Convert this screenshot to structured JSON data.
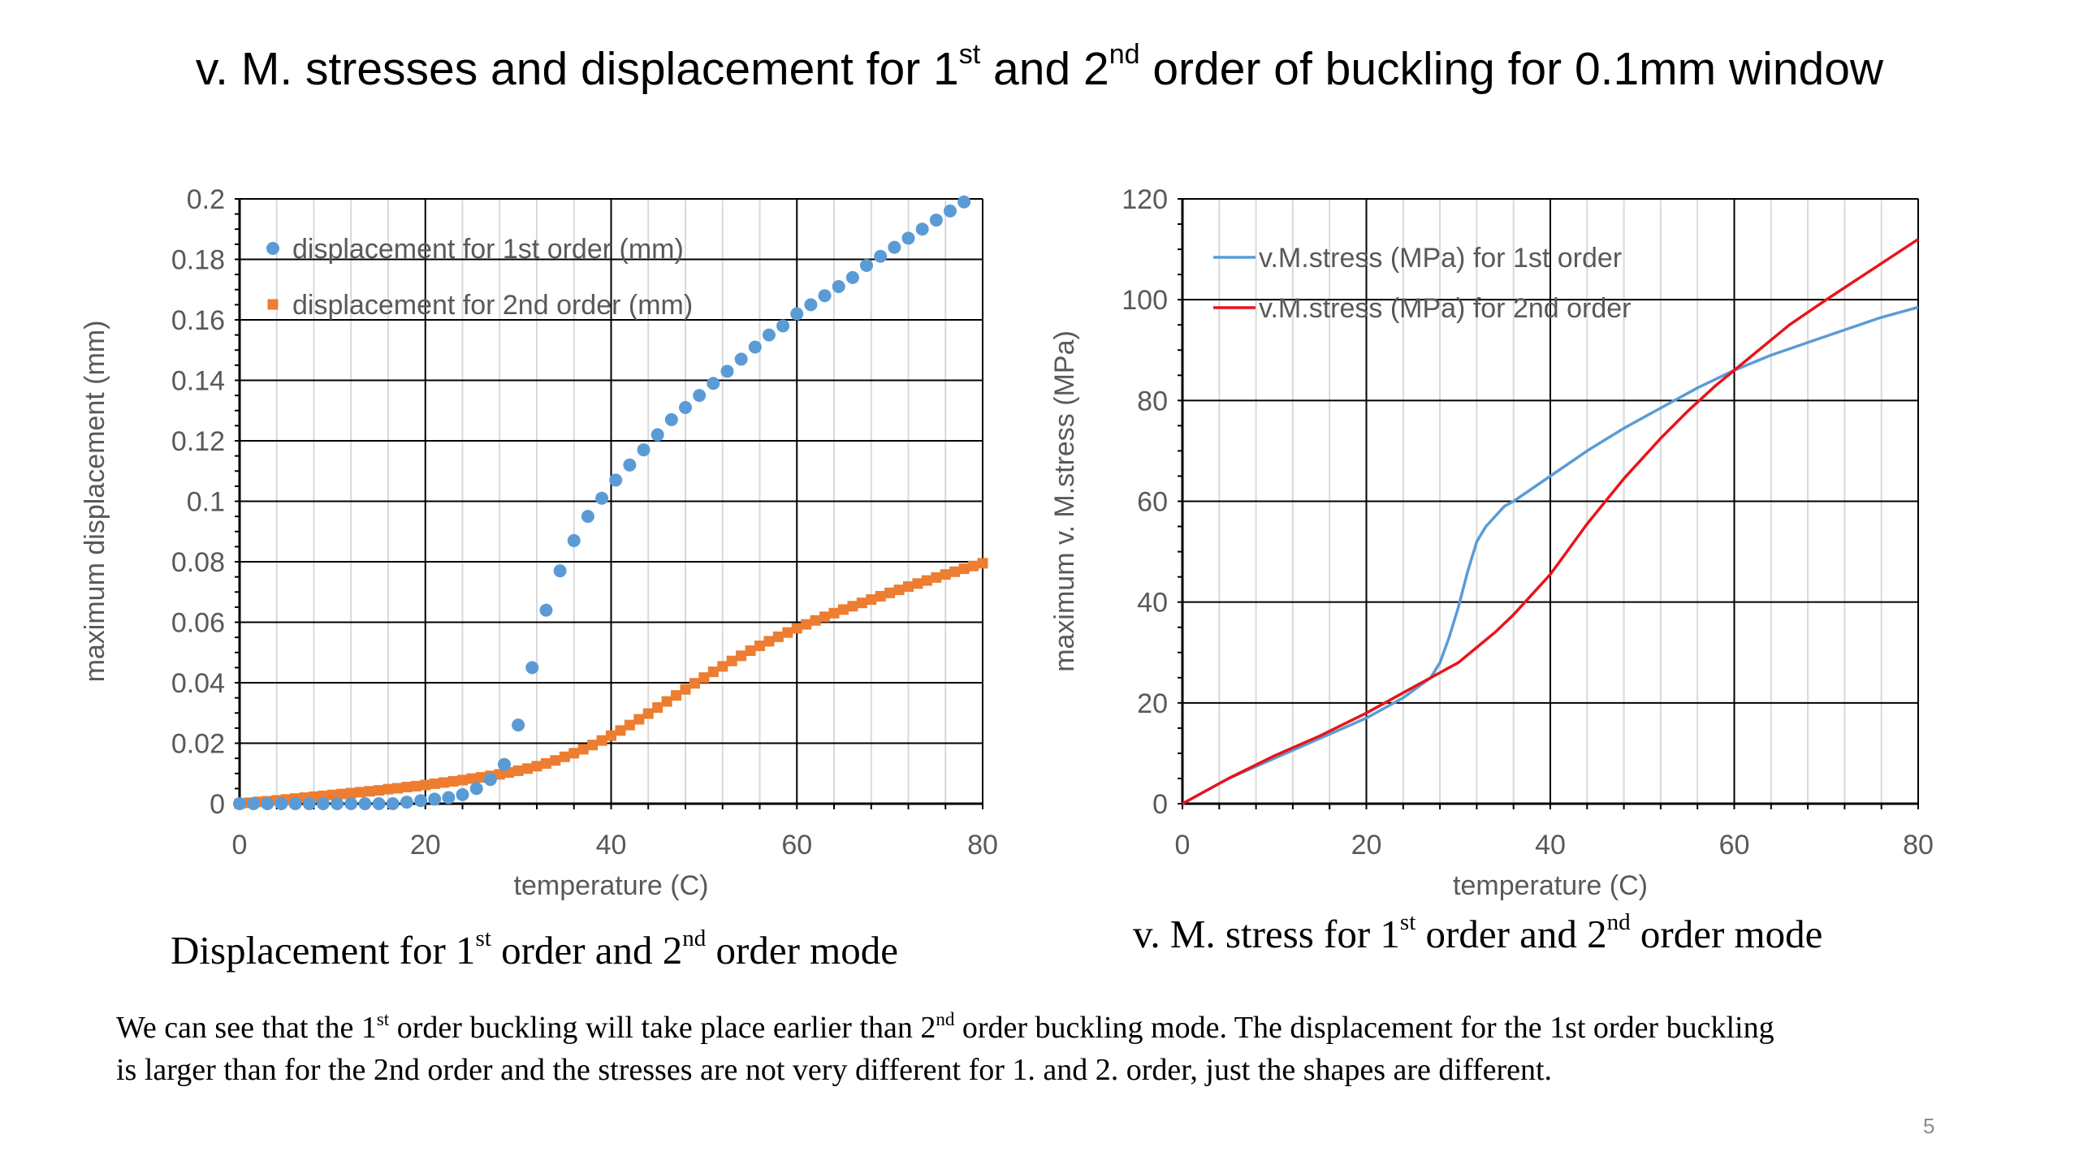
{
  "title": {
    "part1": "v. M. stresses and displacement for 1",
    "sup1": "st",
    "part2": " and 2",
    "sup2": "nd",
    "part3": " order of buckling for 0.1mm window"
  },
  "captions": {
    "left": {
      "part1": "Displacement for 1",
      "sup1": "st",
      "part2": " order and 2",
      "sup2": "nd",
      "part3": " order mode"
    },
    "right": {
      "part1": "v. M. stress for 1",
      "sup1": "st",
      "part2": " order and 2",
      "sup2": "nd",
      "part3": " order mode"
    }
  },
  "body": {
    "line1_a": "We can see that the 1",
    "line1_sup1": "st",
    "line1_b": " order buckling will take place earlier than 2",
    "line1_sup2": "nd",
    "line1_c": " order buckling mode. The displacement for the 1st order buckling",
    "line2": "is larger than for  the  2nd order and the stresses are not very different for 1. and 2. order, just the shapes are different."
  },
  "page_number": "5",
  "colors": {
    "blue_series": "#5B9BD5",
    "orange_series": "#ED7D31",
    "line_blue": "#5B9BD5",
    "line_red": "#E8141B",
    "gridline": "#000000",
    "minor_gridline": "#D9D9D9",
    "axis_text": "#595959"
  },
  "chart_data": [
    {
      "type": "scatter",
      "xlabel": "temperature (C)",
      "ylabel": "maximum displacement (mm)",
      "xlim": [
        0,
        80
      ],
      "ylim": [
        0,
        0.2
      ],
      "xticks": [
        0,
        20,
        40,
        60,
        80
      ],
      "yticks": [
        0,
        0.02,
        0.04,
        0.06,
        0.08,
        0.1,
        0.12,
        0.14,
        0.16,
        0.18,
        0.2
      ],
      "ytick_labels": [
        "0",
        "0.02",
        "0.04",
        "0.06",
        "0.08",
        "0.1",
        "0.12",
        "0.14",
        "0.16",
        "0.18",
        "0.2"
      ],
      "grid": true,
      "legend_position": "top-left",
      "series": [
        {
          "name": "displacement for 1st order (mm)",
          "marker": "circle",
          "color": "#5B9BD5",
          "x": [
            0,
            1.5,
            3,
            4.5,
            6,
            7.5,
            9,
            10.5,
            12,
            13.5,
            15,
            16.5,
            18,
            19.5,
            21,
            22.5,
            24,
            25.5,
            27,
            28.5,
            30,
            31.5,
            33,
            34.5,
            36,
            37.5,
            39,
            40.5,
            42,
            43.5,
            45,
            46.5,
            48,
            49.5,
            51,
            52.5,
            54,
            55.5,
            57,
            58.5,
            60,
            61.5,
            63,
            64.5,
            66,
            67.5,
            69,
            70.5,
            72,
            73.5,
            75,
            76.5,
            78
          ],
          "y": [
            0,
            0,
            0,
            0,
            0,
            0,
            0,
            0,
            0,
            0,
            0,
            0,
            0.0005,
            0.001,
            0.0015,
            0.002,
            0.003,
            0.005,
            0.008,
            0.013,
            0.026,
            0.045,
            0.064,
            0.077,
            0.087,
            0.095,
            0.101,
            0.107,
            0.112,
            0.117,
            0.122,
            0.127,
            0.131,
            0.135,
            0.139,
            0.143,
            0.147,
            0.151,
            0.155,
            0.158,
            0.162,
            0.165,
            0.168,
            0.171,
            0.174,
            0.178,
            0.181,
            0.184,
            0.187,
            0.19,
            0.193,
            0.196,
            0.199
          ]
        },
        {
          "name": "displacement for 2nd order (mm)",
          "marker": "square",
          "color": "#ED7D31",
          "x": [
            0,
            1,
            2,
            3,
            4,
            5,
            6,
            7,
            8,
            9,
            10,
            11,
            12,
            13,
            14,
            15,
            16,
            17,
            18,
            19,
            20,
            21,
            22,
            23,
            24,
            25,
            26,
            27,
            28,
            29,
            30,
            31,
            32,
            33,
            34,
            35,
            36,
            37,
            38,
            39,
            40,
            41,
            42,
            43,
            44,
            45,
            46,
            47,
            48,
            49,
            50,
            51,
            52,
            53,
            54,
            55,
            56,
            57,
            58,
            59,
            60,
            61,
            62,
            63,
            64,
            65,
            66,
            67,
            68,
            69,
            70,
            71,
            72,
            73,
            74,
            75,
            76,
            77,
            78,
            79,
            80
          ],
          "y": [
            0,
            0.0003,
            0.0006,
            0.0008,
            0.0011,
            0.0014,
            0.0017,
            0.002,
            0.0023,
            0.0026,
            0.0029,
            0.0032,
            0.0035,
            0.0038,
            0.0041,
            0.0044,
            0.0048,
            0.0051,
            0.0055,
            0.0058,
            0.0062,
            0.0066,
            0.007,
            0.0074,
            0.0078,
            0.0083,
            0.0087,
            0.0092,
            0.0097,
            0.0103,
            0.0109,
            0.0116,
            0.0124,
            0.0133,
            0.0143,
            0.0155,
            0.0167,
            0.018,
            0.0194,
            0.0209,
            0.0225,
            0.0242,
            0.026,
            0.0279,
            0.0298,
            0.0318,
            0.0338,
            0.0358,
            0.0378,
            0.0398,
            0.0417,
            0.0436,
            0.0454,
            0.0472,
            0.0489,
            0.0506,
            0.0522,
            0.0537,
            0.0552,
            0.0566,
            0.058,
            0.0593,
            0.0606,
            0.0618,
            0.063,
            0.0642,
            0.0653,
            0.0664,
            0.0675,
            0.0686,
            0.0697,
            0.0707,
            0.0718,
            0.0728,
            0.0738,
            0.0748,
            0.0758,
            0.0767,
            0.0777,
            0.0786,
            0.0795
          ]
        }
      ]
    },
    {
      "type": "line",
      "xlabel": "temperature (C)",
      "ylabel": "maximum v. M.stress (MPa)",
      "xlim": [
        0,
        80
      ],
      "ylim": [
        0,
        120
      ],
      "xticks": [
        0,
        20,
        40,
        60,
        80
      ],
      "yticks": [
        0,
        20,
        40,
        60,
        80,
        100,
        120
      ],
      "grid": true,
      "legend_position": "top-left",
      "series": [
        {
          "name": "v.M.stress (MPa) for 1st order",
          "color": "#5B9BD5",
          "x": [
            0,
            5,
            10,
            15,
            20,
            24,
            27,
            28,
            29,
            30,
            31,
            32,
            33,
            34,
            35,
            36,
            38,
            40,
            44,
            48,
            52,
            56,
            60,
            64,
            68,
            72,
            76,
            80
          ],
          "y": [
            0,
            5,
            9,
            13,
            17,
            21,
            25,
            28,
            33,
            39,
            46,
            52,
            55,
            57,
            59,
            60,
            62.5,
            65,
            70,
            74.5,
            78.5,
            82.5,
            86,
            89,
            91.5,
            94,
            96.5,
            98.5
          ]
        },
        {
          "name": "v.M.stress (MPa) for 2nd order",
          "color": "#E8141B",
          "x": [
            0,
            5,
            10,
            15,
            20,
            25,
            28,
            30,
            32,
            34,
            36,
            38,
            40,
            42,
            44,
            46,
            48,
            50,
            52,
            55,
            58,
            60,
            63,
            66,
            70,
            75,
            80
          ],
          "y": [
            0,
            5,
            9.5,
            13.5,
            18,
            23,
            26,
            28,
            31,
            34,
            37.5,
            41.5,
            45.5,
            50.5,
            55.5,
            60,
            64.5,
            68.5,
            72.5,
            78,
            83,
            86,
            90.5,
            95,
            100,
            106,
            112
          ]
        }
      ]
    }
  ]
}
